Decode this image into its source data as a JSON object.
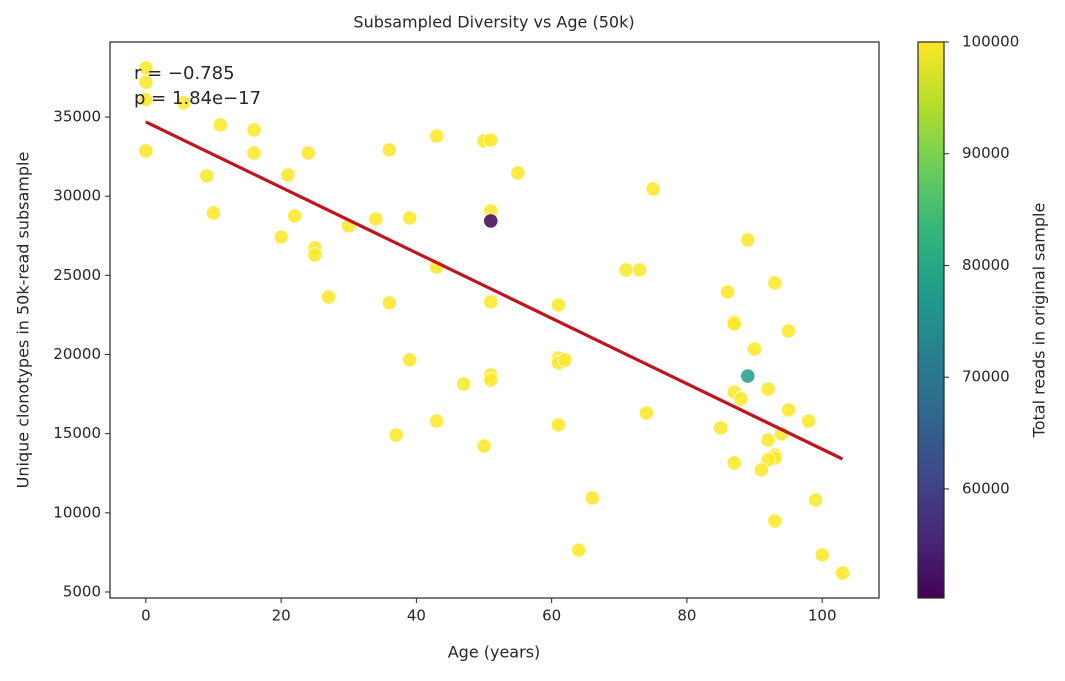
{
  "chart_data": {
    "type": "scatter",
    "title": "Subsampled Diversity vs Age (50k)",
    "x_label": "Age (years)",
    "y_label": "Unique clonotypes in 50k-read subsample",
    "colorbar_label": "Total reads in original sample",
    "annotations": [
      "r = −0.785",
      "p = 1.84e−17"
    ],
    "x": [
      0,
      0,
      0,
      5.6,
      0,
      11,
      16,
      16,
      9,
      10,
      21,
      24,
      22,
      20,
      25,
      25,
      30,
      27,
      34,
      36,
      39,
      43,
      43,
      36,
      39,
      37,
      43,
      47,
      50,
      51,
      51,
      51,
      51,
      51,
      51,
      50,
      55,
      61,
      61,
      61,
      62,
      61,
      66,
      64,
      71,
      73,
      75,
      74,
      86,
      85,
      87,
      87,
      89,
      89,
      87,
      88,
      87,
      90,
      93,
      95,
      92,
      95,
      98,
      92,
      94,
      93,
      93,
      92,
      91,
      93,
      99,
      100,
      103
    ],
    "y": [
      38100,
      37200,
      36100,
      35900,
      32860,
      34500,
      34190,
      32730,
      31280,
      28940,
      31340,
      32730,
      28750,
      27430,
      26730,
      26290,
      28120,
      23640,
      28560,
      32920,
      28630,
      33800,
      25530,
      23260,
      19660,
      14920,
      15800,
      18140,
      33490,
      33550,
      29070,
      28440,
      23320,
      18710,
      18390,
      14220,
      31470,
      23130,
      19780,
      19470,
      19660,
      15550,
      10940,
      7650,
      25340,
      25340,
      30460,
      16310,
      23950,
      15360,
      22060,
      21930,
      27240,
      18640,
      17630,
      17190,
      13150,
      20350,
      24520,
      21490,
      17820,
      16500,
      15800,
      14600,
      14980,
      13650,
      13460,
      13340,
      12710,
      9490,
      10810,
      7340,
      6200
    ],
    "c": [
      100000,
      100000,
      100000,
      100000,
      100000,
      100000,
      100000,
      100000,
      100000,
      100000,
      100000,
      100000,
      100000,
      100000,
      100000,
      100000,
      100000,
      100000,
      100000,
      100000,
      100000,
      100000,
      100000,
      100000,
      100000,
      100000,
      100000,
      100000,
      100000,
      100000,
      100000,
      50240,
      100000,
      100000,
      100000,
      100000,
      100000,
      100000,
      100000,
      100000,
      100000,
      100000,
      100000,
      100000,
      100000,
      100000,
      100000,
      100000,
      100000,
      100000,
      100000,
      100000,
      100000,
      77600,
      100000,
      100000,
      100000,
      100000,
      100000,
      100000,
      100000,
      100000,
      100000,
      100000,
      100000,
      100000,
      100000,
      100000,
      100000,
      100000,
      100000,
      100000,
      100000
    ],
    "colormap": [
      "#440154",
      "#482878",
      "#3e4989",
      "#31688e",
      "#26828e",
      "#1f9e89",
      "#35b779",
      "#6ece58",
      "#b5de2b",
      "#fde725"
    ],
    "clim": [
      50240,
      100000
    ],
    "cticks": [
      60000,
      70000,
      80000,
      90000,
      100000
    ],
    "fit_line": {
      "x": [
        0,
        103
      ],
      "y": [
        34690,
        13400
      ],
      "color": "#c0141e"
    },
    "xlim": [
      -5.3,
      108.4
    ],
    "xticks": [
      0,
      20,
      40,
      60,
      80,
      100
    ],
    "ylim": [
      4620,
      39740
    ],
    "yticks": [
      5000,
      10000,
      15000,
      20000,
      25000,
      30000,
      35000
    ],
    "grid": false
  }
}
